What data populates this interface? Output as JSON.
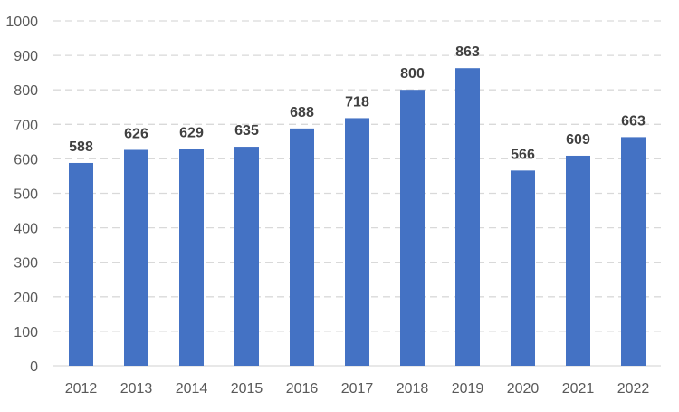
{
  "chart_data": {
    "type": "bar",
    "categories": [
      "2012",
      "2013",
      "2014",
      "2015",
      "2016",
      "2017",
      "2018",
      "2019",
      "2020",
      "2021",
      "2022"
    ],
    "values": [
      588,
      626,
      629,
      635,
      688,
      718,
      800,
      863,
      566,
      609,
      663
    ],
    "data_labels": [
      "588",
      "626",
      "629",
      "635",
      "688",
      "718",
      "800",
      "863",
      "566",
      "609",
      "663"
    ],
    "y_ticks": [
      "0",
      "100",
      "200",
      "300",
      "400",
      "500",
      "600",
      "700",
      "800",
      "900",
      "1000"
    ],
    "title": "",
    "xlabel": "",
    "ylabel": "",
    "ylim": [
      0,
      1000
    ],
    "grid": true,
    "legend": "none",
    "bar_color": "#4472c4"
  }
}
